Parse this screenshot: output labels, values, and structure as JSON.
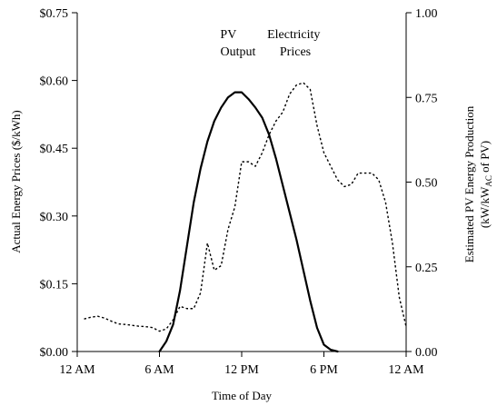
{
  "chart_data": {
    "type": "line",
    "title": "",
    "xlabel": "Time of Day",
    "ylabel_left": "Actual Energy Prices ($/kWh)",
    "ylabel_right_line1": "Estimated PV Energy Production",
    "ylabel_right_line2_main": "(kW/kW",
    "ylabel_right_line2_sub": "AC",
    "ylabel_right_line2_end": " of PV)",
    "x_ticks": [
      "12 AM",
      "6 AM",
      "12 PM",
      "6 PM",
      "12 AM"
    ],
    "x_tick_hours": [
      0,
      6,
      12,
      18,
      24
    ],
    "xlim": [
      0,
      24
    ],
    "y_left_ticks": [
      "$0.00",
      "$0.15",
      "$0.30",
      "$0.45",
      "$0.60",
      "$0.75"
    ],
    "y_left_tick_values": [
      0,
      0.15,
      0.3,
      0.45,
      0.6,
      0.75
    ],
    "ylim_left": [
      0,
      0.75
    ],
    "y_right_ticks": [
      "0.00",
      "0.25",
      "0.50",
      "0.75",
      "1.00"
    ],
    "y_right_tick_values": [
      0,
      0.25,
      0.5,
      0.75,
      1.0
    ],
    "ylim_right": [
      0,
      1.0
    ],
    "grid": false,
    "legend": "none",
    "annotations": [
      {
        "lines": [
          "PV",
          "Output"
        ],
        "anchor_x_hour": 11.6
      },
      {
        "lines": [
          "Electricity",
          "Prices"
        ],
        "anchor_x_hour": 15.7
      }
    ],
    "series": [
      {
        "key": "pv",
        "axis": "right",
        "style": "solid",
        "color": "#000000",
        "x": [
          6.0,
          6.5,
          7.0,
          7.5,
          8.0,
          8.5,
          9.0,
          9.5,
          10.0,
          10.5,
          11.0,
          11.5,
          12.0,
          12.5,
          13.0,
          13.5,
          14.0,
          14.5,
          15.0,
          15.5,
          16.0,
          16.5,
          17.0,
          17.5,
          18.0,
          18.5,
          19.0
        ],
        "y": [
          0.0,
          0.03,
          0.08,
          0.18,
          0.31,
          0.44,
          0.54,
          0.62,
          0.68,
          0.72,
          0.75,
          0.765,
          0.765,
          0.745,
          0.72,
          0.69,
          0.64,
          0.57,
          0.49,
          0.41,
          0.33,
          0.24,
          0.15,
          0.07,
          0.02,
          0.005,
          0.0
        ]
      },
      {
        "key": "price",
        "axis": "left",
        "style": "dotted",
        "color": "#000000",
        "x": [
          0.5,
          1.0,
          1.5,
          2.0,
          2.5,
          3.0,
          3.5,
          4.0,
          4.5,
          5.0,
          5.5,
          6.0,
          6.5,
          7.0,
          7.5,
          8.0,
          8.5,
          9.0,
          9.5,
          10.0,
          10.5,
          11.0,
          11.5,
          12.0,
          12.5,
          13.0,
          13.5,
          14.0,
          14.5,
          15.0,
          15.5,
          16.0,
          16.5,
          17.0,
          17.5,
          18.0,
          18.5,
          19.0,
          19.5,
          20.0,
          20.5,
          21.0,
          21.5,
          22.0,
          22.5,
          23.0,
          23.5,
          24.0
        ],
        "y": [
          0.072,
          0.076,
          0.078,
          0.074,
          0.067,
          0.061,
          0.06,
          0.058,
          0.056,
          0.055,
          0.053,
          0.045,
          0.05,
          0.07,
          0.1,
          0.095,
          0.095,
          0.13,
          0.24,
          0.18,
          0.19,
          0.27,
          0.32,
          0.42,
          0.42,
          0.41,
          0.44,
          0.48,
          0.51,
          0.53,
          0.57,
          0.59,
          0.595,
          0.58,
          0.5,
          0.44,
          0.41,
          0.38,
          0.365,
          0.37,
          0.395,
          0.395,
          0.395,
          0.38,
          0.33,
          0.24,
          0.12,
          0.055
        ]
      }
    ]
  }
}
